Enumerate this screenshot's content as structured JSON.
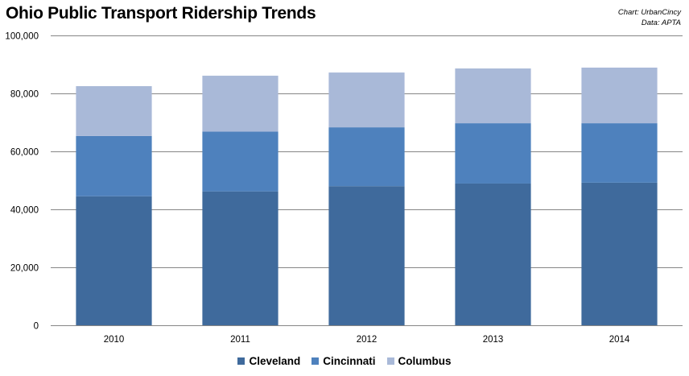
{
  "title": "Ohio Public Transport Ridership Trends",
  "credits": {
    "line1": "Chart: UrbanCincy",
    "line2": "Data: APTA"
  },
  "chart_data": {
    "type": "bar",
    "stacked": true,
    "title": "Ohio Public Transport Ridership Trends",
    "xlabel": "",
    "ylabel": "",
    "categories": [
      "2010",
      "2011",
      "2012",
      "2013",
      "2014"
    ],
    "ylim": [
      0,
      100000
    ],
    "yticks": [
      0,
      20000,
      40000,
      60000,
      80000,
      100000
    ],
    "ytick_labels": [
      "0",
      "20,000",
      "40,000",
      "60,000",
      "80,000",
      "100,000"
    ],
    "grid": true,
    "legend_position": "bottom",
    "series": [
      {
        "name": "Cleveland",
        "color": "#3f6a9c",
        "values": [
          44500,
          46200,
          48000,
          48900,
          49200
        ]
      },
      {
        "name": "Cincinnati",
        "color": "#4e81bd",
        "values": [
          20800,
          20600,
          20300,
          20800,
          20500
        ]
      },
      {
        "name": "Columbus",
        "color": "#a9b9d8",
        "values": [
          17200,
          19300,
          18900,
          18900,
          19200
        ]
      }
    ]
  }
}
